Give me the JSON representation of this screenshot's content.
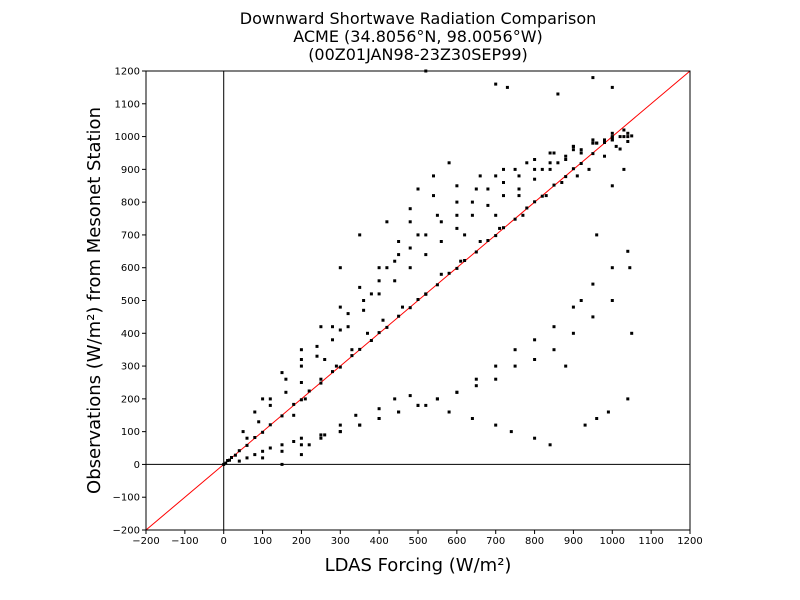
{
  "chart_data": {
    "type": "scatter",
    "title": [
      "Downward Shortwave Radiation Comparison",
      "ACME (34.8056°N, 98.0056°W)",
      "(00Z01JAN98-23Z30SEP99)"
    ],
    "xlabel": "LDAS Forcing (W/m²)",
    "ylabel": "Observations (W/m²) from Mesonet Station",
    "xlim": [
      -200,
      1200
    ],
    "ylim": [
      -200,
      1200
    ],
    "x_ticks": [
      "-200",
      "-100",
      "0",
      "100",
      "200",
      "300",
      "400",
      "500",
      "600",
      "700",
      "800",
      "900",
      "1000",
      "1100",
      "1200"
    ],
    "y_ticks": [
      "-200",
      "-100",
      "0",
      "100",
      "200",
      "300",
      "400",
      "500",
      "600",
      "700",
      "800",
      "900",
      "1000",
      "1100",
      "1200"
    ],
    "reference_line": {
      "kind": "1:1",
      "from": [
        -200,
        -200
      ],
      "to": [
        1200,
        1200
      ],
      "color": "#ff0000"
    },
    "zero_lines": {
      "x": 0,
      "y": 0
    },
    "point_color": "#000000",
    "grid": false,
    "series": [
      {
        "x": [
          0,
          5,
          10,
          15,
          20,
          30,
          40,
          60,
          80,
          100,
          120,
          150,
          180,
          200,
          220,
          250,
          280,
          300,
          330,
          350,
          380,
          400,
          420,
          450,
          480,
          500,
          520,
          550,
          580,
          600,
          620,
          650,
          680,
          700,
          720,
          750,
          780,
          800,
          820,
          850,
          880,
          900,
          920,
          950,
          980,
          1000,
          1020,
          1040,
          1050,
          40,
          60,
          80,
          100,
          120,
          150,
          180,
          200,
          250,
          300,
          350,
          400,
          450,
          500,
          550,
          600,
          650,
          700,
          750,
          800,
          850,
          900,
          950,
          1000,
          50,
          80,
          100,
          150,
          200,
          250,
          300,
          350,
          400,
          450,
          500,
          550,
          600,
          650,
          700,
          750,
          800,
          850,
          900,
          950,
          1000,
          1030,
          100,
          150,
          200,
          250,
          300,
          350,
          400,
          450,
          500,
          550,
          600,
          650,
          700,
          750,
          800,
          850,
          900,
          950,
          1000,
          1040,
          60,
          90,
          120,
          160,
          200,
          240,
          280,
          320,
          360,
          400,
          440,
          480,
          520,
          560,
          600,
          640,
          680,
          720,
          760,
          800,
          840,
          880,
          920,
          960,
          1000,
          200,
          260,
          300,
          380,
          420,
          450,
          480,
          500,
          540,
          580,
          620,
          700,
          760,
          820,
          860,
          900,
          950,
          980,
          1020,
          1040,
          150,
          200,
          220,
          260,
          300,
          340,
          400,
          440,
          480,
          520,
          580,
          640,
          700,
          740,
          800,
          840,
          880,
          920,
          960,
          1000,
          120,
          160,
          200,
          240,
          280,
          320,
          360,
          400,
          440,
          480,
          520,
          560,
          600,
          640,
          680,
          720,
          760,
          800,
          840,
          880,
          920,
          960,
          1000,
          1030,
          180,
          210,
          250,
          290,
          330,
          370,
          410,
          460,
          520,
          560,
          610,
          660,
          710,
          770,
          830,
          870,
          910,
          940,
          980,
          1010,
          300,
          350,
          420,
          480,
          540,
          600,
          660,
          720,
          780,
          840,
          900,
          950,
          1000,
          1040,
          520,
          700,
          730,
          860,
          950,
          1000,
          1030,
          1045,
          1050,
          1040,
          990,
          960,
          930
        ],
        "y": [
          0,
          4,
          12,
          13,
          21,
          28,
          42,
          58,
          82,
          98,
          121,
          148,
          183,
          197,
          224,
          248,
          283,
          297,
          332,
          351,
          378,
          402,
          418,
          452,
          478,
          503,
          519,
          548,
          583,
          598,
          622,
          648,
          683,
          698,
          722,
          748,
          782,
          801,
          818,
          852,
          878,
          902,
          918,
          948,
          982,
          998,
          962,
          985,
          1002,
          10,
          20,
          30,
          40,
          50,
          60,
          70,
          80,
          90,
          100,
          120,
          140,
          160,
          180,
          200,
          220,
          240,
          260,
          300,
          320,
          350,
          400,
          450,
          500,
          100,
          160,
          200,
          280,
          350,
          420,
          480,
          540,
          600,
          640,
          700,
          760,
          800,
          840,
          880,
          900,
          930,
          950,
          970,
          990,
          1010,
          1020,
          20,
          40,
          60,
          80,
          100,
          120,
          140,
          160,
          180,
          200,
          220,
          260,
          300,
          350,
          380,
          420,
          480,
          550,
          600,
          650,
          80,
          130,
          180,
          220,
          300,
          330,
          380,
          420,
          470,
          520,
          560,
          600,
          640,
          680,
          720,
          760,
          790,
          820,
          840,
          870,
          900,
          930,
          950,
          980,
          1000,
          250,
          320,
          410,
          520,
          600,
          680,
          740,
          840,
          880,
          920,
          700,
          760,
          820,
          900,
          920,
          960,
          980,
          990,
          1000,
          1010,
          0,
          30,
          60,
          90,
          120,
          150,
          170,
          200,
          210,
          180,
          160,
          140,
          120,
          100,
          80,
          60,
          300,
          500,
          700,
          850,
          200,
          260,
          320,
          360,
          420,
          460,
          500,
          560,
          620,
          660,
          700,
          740,
          760,
          800,
          840,
          860,
          880,
          900,
          920,
          940,
          960,
          980,
          990,
          1000,
          150,
          200,
          260,
          300,
          350,
          400,
          440,
          480,
          520,
          580,
          620,
          680,
          720,
          760,
          820,
          860,
          880,
          900,
          940,
          970,
          600,
          700,
          740,
          780,
          820,
          850,
          880,
          900,
          920,
          950,
          970,
          980,
          990,
          1000,
          1200,
          1160,
          1150,
          1130,
          1180,
          1150,
          900,
          600,
          400,
          200,
          160,
          140,
          120
        ]
      }
    ]
  }
}
